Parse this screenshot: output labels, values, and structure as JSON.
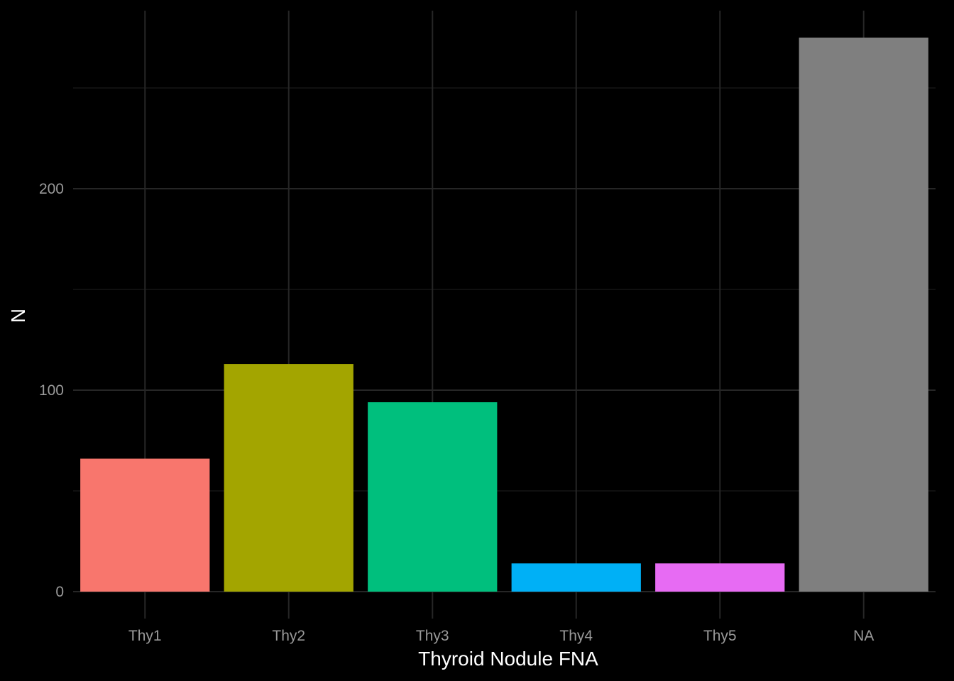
{
  "chart_data": {
    "type": "bar",
    "xlabel": "Thyroid Nodule FNA",
    "ylabel": "N",
    "categories": [
      "Thy1",
      "Thy2",
      "Thy3",
      "Thy4",
      "Thy5",
      "NA"
    ],
    "values": [
      66,
      113,
      94,
      14,
      14,
      275
    ],
    "colors": [
      "#F8766D",
      "#A3A500",
      "#00BF7D",
      "#00B0F6",
      "#E76BF3",
      "#7F7F7F"
    ],
    "ylim": [
      0,
      275
    ],
    "y_ticks": [
      0,
      100,
      200
    ],
    "y_minor_ticks": [
      50,
      150,
      250
    ],
    "grid": true,
    "legend": "none",
    "background": "#000000"
  }
}
